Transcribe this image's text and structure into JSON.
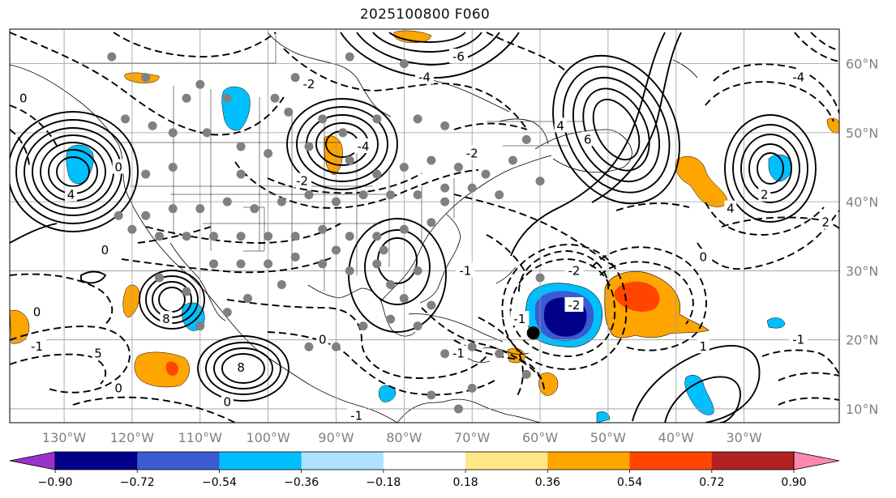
{
  "chart_data": {
    "type": "heatmap",
    "title": "2025100800 F060",
    "lon_range": [
      -138,
      -16
    ],
    "lat_range": [
      8,
      65
    ],
    "x_ticks": [
      {
        "lon": -130,
        "label": "130°W"
      },
      {
        "lon": -120,
        "label": "120°W"
      },
      {
        "lon": -110,
        "label": "110°W"
      },
      {
        "lon": -100,
        "label": "100°W"
      },
      {
        "lon": -90,
        "label": "90°W"
      },
      {
        "lon": -80,
        "label": "80°W"
      },
      {
        "lon": -70,
        "label": "70°W"
      },
      {
        "lon": -60,
        "label": "60°W"
      },
      {
        "lon": -50,
        "label": "50°W"
      },
      {
        "lon": -40,
        "label": "40°W"
      },
      {
        "lon": -30,
        "label": "30°W"
      }
    ],
    "y_ticks": [
      {
        "lat": 60,
        "label": "60°N"
      },
      {
        "lat": 50,
        "label": "50°N"
      },
      {
        "lat": 40,
        "label": "40°N"
      },
      {
        "lat": 30,
        "label": "30°N"
      },
      {
        "lat": 20,
        "label": "20°N"
      },
      {
        "lat": 10,
        "label": "10°N"
      }
    ],
    "colorbar": {
      "boundaries": [
        "−0.90",
        "−0.72",
        "−0.54",
        "−0.36",
        "−0.18",
        "0.18",
        "0.36",
        "0.54",
        "0.72",
        "0.90"
      ],
      "colors": [
        "#9932cc",
        "#00008b",
        "#3b5bd0",
        "#00bfff",
        "#aee0ff",
        "#ffffff",
        "#ffe787",
        "#ffa500",
        "#ff4500",
        "#b22222",
        "#ff88b2"
      ],
      "extend": "both"
    },
    "contour_labels": [
      {
        "text": "0",
        "lon": -136,
        "lat": 55
      },
      {
        "text": "4",
        "lon": -129,
        "lat": 41
      },
      {
        "text": "0",
        "lon": -124,
        "lat": 33
      },
      {
        "text": "8",
        "lon": -115,
        "lat": 23
      },
      {
        "text": "0",
        "lon": -134,
        "lat": 24
      },
      {
        "text": "-1",
        "lon": -134,
        "lat": 19
      },
      {
        "text": "5",
        "lon": -125,
        "lat": 18
      },
      {
        "text": "0",
        "lon": -122,
        "lat": 13
      },
      {
        "text": "8",
        "lon": -104,
        "lat": 16
      },
      {
        "text": "0",
        "lon": -106,
        "lat": 11
      },
      {
        "text": "-1",
        "lon": -87,
        "lat": 9
      },
      {
        "text": "0",
        "lon": -122,
        "lat": 45
      },
      {
        "text": "-2",
        "lon": -95,
        "lat": 43
      },
      {
        "text": "-2",
        "lon": -94,
        "lat": 57
      },
      {
        "text": "-4",
        "lon": -86,
        "lat": 48
      },
      {
        "text": "-2",
        "lon": -70,
        "lat": 47
      },
      {
        "text": "-6",
        "lon": -72,
        "lat": 61
      },
      {
        "text": "-4",
        "lon": -77,
        "lat": 58
      },
      {
        "text": "-4",
        "lon": -22,
        "lat": 58
      },
      {
        "text": "6",
        "lon": -53,
        "lat": 49
      },
      {
        "text": "4",
        "lon": -57,
        "lat": 51
      },
      {
        "text": "4",
        "lon": -32,
        "lat": 39
      },
      {
        "text": "2",
        "lon": -27,
        "lat": 41
      },
      {
        "text": "2",
        "lon": -18,
        "lat": 37
      },
      {
        "text": "-1",
        "lon": -63,
        "lat": 23
      },
      {
        "text": "-2",
        "lon": -55,
        "lat": 25
      },
      {
        "text": "-1",
        "lon": -72,
        "lat": 18
      },
      {
        "text": "-1",
        "lon": -71,
        "lat": 30
      },
      {
        "text": "0",
        "lon": -36,
        "lat": 32
      },
      {
        "text": "1",
        "lon": -36,
        "lat": 19
      },
      {
        "text": "-1",
        "lon": -22,
        "lat": 20
      },
      {
        "text": "-2",
        "lon": -55,
        "lat": 30
      },
      {
        "text": "0",
        "lon": -92,
        "lat": 20
      }
    ],
    "station_markers": [
      [
        -123,
        61
      ],
      [
        -118,
        58
      ],
      [
        -110,
        57
      ],
      [
        -112,
        55
      ],
      [
        -106,
        55
      ],
      [
        -99,
        55
      ],
      [
        -97,
        53
      ],
      [
        -92,
        52
      ],
      [
        -89,
        50
      ],
      [
        -84,
        52
      ],
      [
        -78,
        52
      ],
      [
        -74,
        51
      ],
      [
        -88,
        61
      ],
      [
        -80,
        60
      ],
      [
        -96,
        58
      ],
      [
        -121,
        52
      ],
      [
        -117,
        51
      ],
      [
        -114,
        50
      ],
      [
        -109,
        50
      ],
      [
        -104,
        48
      ],
      [
        -100,
        47
      ],
      [
        -94,
        48
      ],
      [
        -88,
        46
      ],
      [
        -84,
        44
      ],
      [
        -80,
        45
      ],
      [
        -76,
        46
      ],
      [
        -72,
        45
      ],
      [
        -70,
        42
      ],
      [
        -74,
        42
      ],
      [
        -78,
        41
      ],
      [
        -82,
        41
      ],
      [
        -86,
        41
      ],
      [
        -90,
        40
      ],
      [
        -94,
        41
      ],
      [
        -98,
        40
      ],
      [
        -102,
        39
      ],
      [
        -106,
        40
      ],
      [
        -110,
        39
      ],
      [
        -114,
        39
      ],
      [
        -118,
        38
      ],
      [
        -122,
        38
      ],
      [
        -120,
        36
      ],
      [
        -116,
        35
      ],
      [
        -112,
        35
      ],
      [
        -108,
        35
      ],
      [
        -104,
        35
      ],
      [
        -100,
        35
      ],
      [
        -96,
        35
      ],
      [
        -92,
        36
      ],
      [
        -88,
        35
      ],
      [
        -84,
        35
      ],
      [
        -80,
        36
      ],
      [
        -76,
        37
      ],
      [
        -74,
        40
      ],
      [
        -68,
        44
      ],
      [
        -64,
        46
      ],
      [
        -62,
        49
      ],
      [
        -66,
        41
      ],
      [
        -60,
        43
      ],
      [
        -108,
        31
      ],
      [
        -104,
        31
      ],
      [
        -100,
        31
      ],
      [
        -96,
        32
      ],
      [
        -92,
        31
      ],
      [
        -88,
        30
      ],
      [
        -84,
        31
      ],
      [
        -82,
        28
      ],
      [
        -80,
        26
      ],
      [
        -76,
        25
      ],
      [
        -78,
        22
      ],
      [
        -82,
        23
      ],
      [
        -86,
        22
      ],
      [
        -90,
        19
      ],
      [
        -94,
        19
      ],
      [
        -98,
        28
      ],
      [
        -103,
        26
      ],
      [
        -106,
        24
      ],
      [
        -112,
        27
      ],
      [
        -116,
        29
      ],
      [
        -110,
        22
      ],
      [
        -74,
        18
      ],
      [
        -70,
        19
      ],
      [
        -66,
        18
      ],
      [
        -62,
        15
      ],
      [
        -70,
        13
      ],
      [
        -76,
        12
      ],
      [
        -72,
        10
      ],
      [
        -60,
        29
      ],
      [
        -78,
        30
      ],
      [
        -83,
        33
      ],
      [
        -90,
        33
      ],
      [
        -118,
        44
      ],
      [
        -114,
        45
      ],
      [
        -104,
        44
      ]
    ],
    "highlight_points": [
      {
        "lon": -61,
        "lat": 21
      }
    ]
  }
}
